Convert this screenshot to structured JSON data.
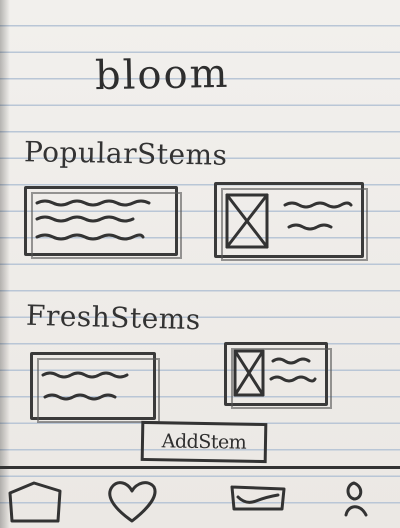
{
  "app": {
    "logo_text": "bloom"
  },
  "sections": {
    "popular": {
      "title": "PopularStems"
    },
    "fresh": {
      "title": "FreshStems"
    }
  },
  "actions": {
    "add_stem_label": "AddStem"
  },
  "nav": {
    "items": [
      {
        "icon": "home-icon"
      },
      {
        "icon": "heart-icon"
      },
      {
        "icon": "inbox-icon"
      },
      {
        "icon": "profile-icon"
      }
    ]
  }
}
